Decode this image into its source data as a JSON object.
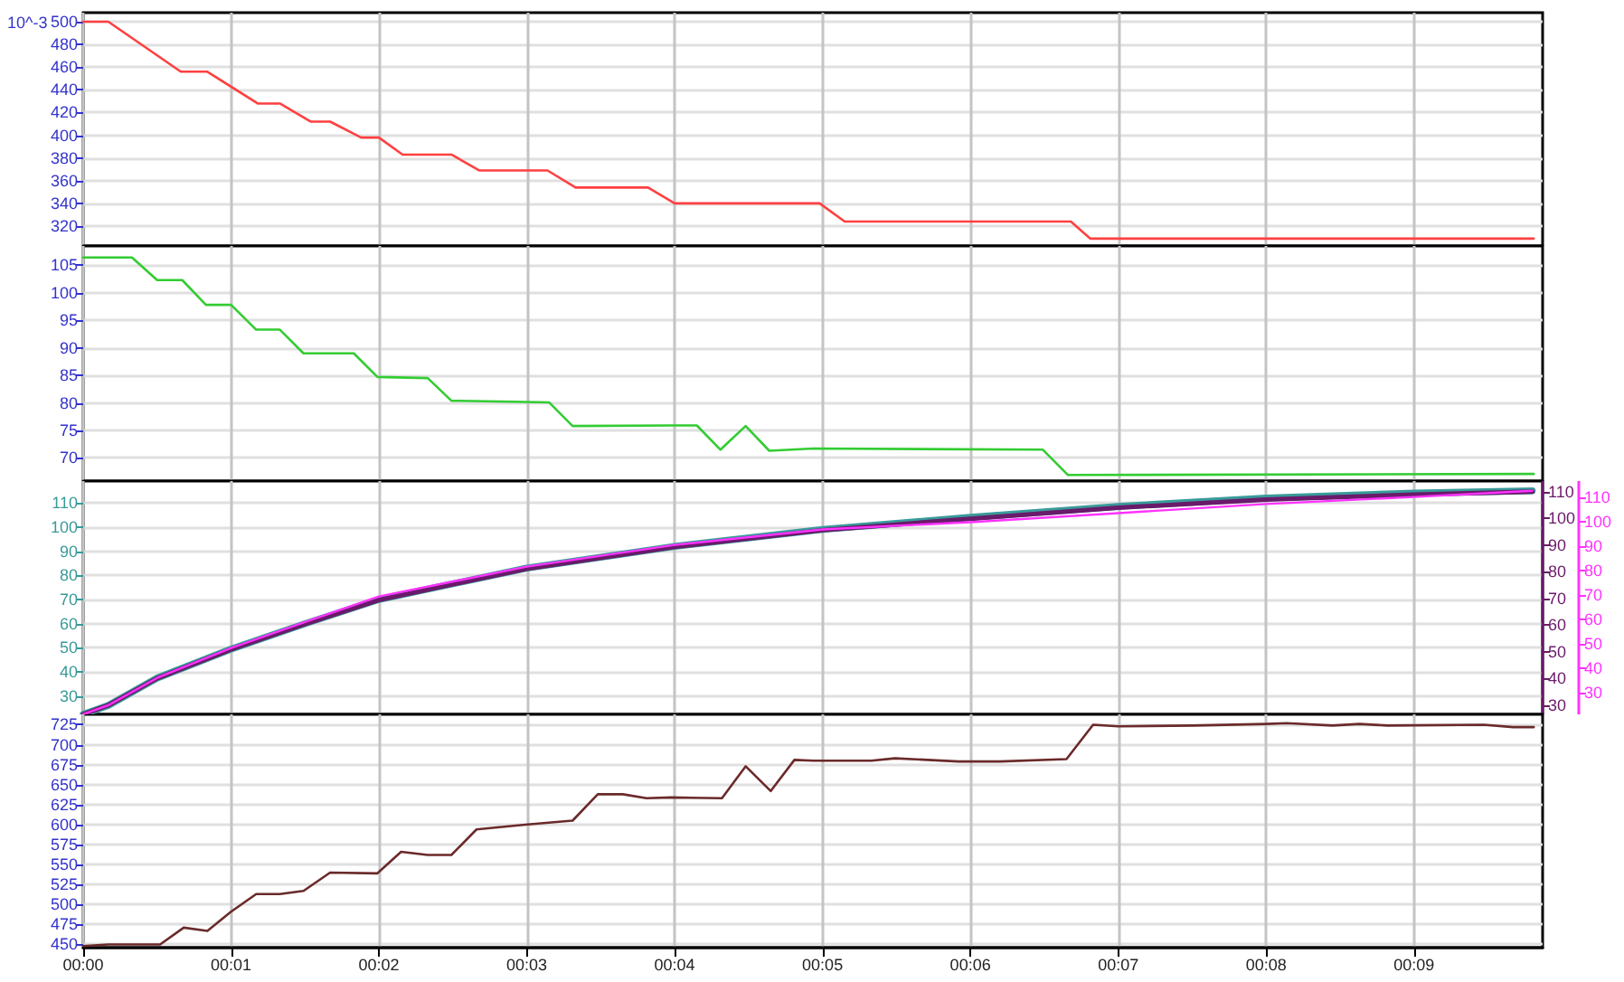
{
  "chart_data": [
    {
      "type": "line",
      "ylabel": "10^-3",
      "x": [
        0,
        0.17,
        0.66,
        0.84,
        1.18,
        1.33,
        1.54,
        1.67,
        1.88,
        2.0,
        2.16,
        2.49,
        2.68,
        3.14,
        3.33,
        3.82,
        4.0,
        4.98,
        5.15,
        6.68,
        6.81,
        9.81
      ],
      "series": [
        {
          "color": "#ff4040",
          "values": [
            500,
            500,
            456,
            456,
            428,
            428,
            412,
            412,
            398,
            398,
            383,
            383,
            369,
            369,
            354,
            354,
            340,
            340,
            324,
            324,
            309,
            309
          ]
        }
      ],
      "xlim": [
        0,
        9.87
      ],
      "xticks": [
        {
          "value": 0,
          "label": null
        },
        {
          "value": 1,
          "label": null
        },
        {
          "value": 2,
          "label": null
        },
        {
          "value": 3,
          "label": null
        },
        {
          "value": 4,
          "label": null
        },
        {
          "value": 5,
          "label": null
        },
        {
          "value": 6,
          "label": null
        },
        {
          "value": 7,
          "label": null
        },
        {
          "value": 8,
          "label": null
        },
        {
          "value": 9,
          "label": null
        }
      ],
      "ylim": [
        302.5,
        508
      ],
      "yticks": [
        320,
        340,
        360,
        380,
        400,
        420,
        440,
        460,
        480,
        500
      ],
      "grid": true,
      "tick_labels": "y",
      "marker": "none",
      "line_style": "solid"
    },
    {
      "type": "line",
      "x": [
        0,
        0.33,
        0.5,
        0.67,
        0.83,
        1.0,
        1.17,
        1.33,
        1.49,
        1.83,
        1.99,
        2.33,
        2.49,
        3.15,
        3.31,
        3.98,
        4.15,
        4.31,
        4.48,
        4.64,
        4.94,
        6.49,
        6.66,
        9.81
      ],
      "series": [
        {
          "color": "#33cc33",
          "values": [
            106.4,
            106.4,
            102.3,
            102.3,
            97.8,
            97.8,
            93.3,
            93.3,
            89.0,
            89.0,
            84.7,
            84.5,
            80.4,
            80.1,
            75.8,
            75.9,
            75.9,
            71.5,
            75.8,
            71.3,
            71.7,
            71.5,
            66.9,
            67.1
          ]
        }
      ],
      "xlim": [
        0,
        9.87
      ],
      "xticks": [
        {
          "value": 0,
          "label": null
        },
        {
          "value": 1,
          "label": null
        },
        {
          "value": 2,
          "label": null
        },
        {
          "value": 3,
          "label": null
        },
        {
          "value": 4,
          "label": null
        },
        {
          "value": 5,
          "label": null
        },
        {
          "value": 6,
          "label": null
        },
        {
          "value": 7,
          "label": null
        },
        {
          "value": 8,
          "label": null
        },
        {
          "value": 9,
          "label": null
        }
      ],
      "ylim": [
        65.8,
        108.5
      ],
      "yticks": [
        70,
        75,
        80,
        85,
        90,
        95,
        100,
        105
      ],
      "grid": true,
      "tick_labels": "y",
      "marker": "none",
      "line_style": "solid"
    },
    {
      "type": "line",
      "x": [
        0,
        0.17,
        0.5,
        1,
        1.5,
        2,
        3,
        4,
        5,
        6,
        7,
        8,
        9,
        9.8
      ],
      "series": [
        {
          "color": "#3a9a9a",
          "values": [
            22.5,
            26.2,
            37.5,
            49.5,
            60,
            70,
            83,
            92,
            99,
            104,
            108.5,
            112,
            114,
            115
          ]
        },
        {
          "color": "#6a1a6a",
          "axis": "y2",
          "values": [
            26.6,
            30,
            40.1,
            50.9,
            60.4,
            69.4,
            81.1,
            89.3,
            95.5,
            99.8,
            103.9,
            107,
            108.8,
            109.9
          ]
        },
        {
          "color": "#ff33ff",
          "axis": "y3",
          "values": [
            21.3,
            25,
            36.2,
            48.4,
            59.1,
            69.5,
            81.7,
            90.6,
            96.9,
            99.9,
            103.6,
            107.3,
            110.2,
            112.7
          ]
        }
      ],
      "xlim": [
        0,
        9.87
      ],
      "xticks": [
        {
          "value": 0,
          "label": null
        },
        {
          "value": 1,
          "label": null
        },
        {
          "value": 2,
          "label": null
        },
        {
          "value": 3,
          "label": null
        },
        {
          "value": 4,
          "label": null
        },
        {
          "value": 5,
          "label": null
        },
        {
          "value": 6,
          "label": null
        },
        {
          "value": 7,
          "label": null
        },
        {
          "value": 8,
          "label": null
        },
        {
          "value": 9,
          "label": null
        }
      ],
      "ylim": [
        22.5,
        119
      ],
      "yticks": [
        30,
        40,
        50,
        60,
        70,
        80,
        90,
        100,
        110
      ],
      "y2lim": [
        26.6,
        113.9
      ],
      "y2ticks": [
        30,
        40,
        50,
        60,
        70,
        80,
        90,
        100,
        110
      ],
      "y3lim": [
        21.3,
        116.7
      ],
      "y3ticks": [
        30,
        40,
        50,
        60,
        70,
        80,
        90,
        100,
        110
      ],
      "grid": true,
      "tick_labels": "y",
      "marker": "none",
      "line_style": "solid"
    },
    {
      "type": "line",
      "x": [
        0,
        0.17,
        0.52,
        0.68,
        0.84,
        1.0,
        1.17,
        1.33,
        1.49,
        1.67,
        1.99,
        2.15,
        2.33,
        2.49,
        2.66,
        2.99,
        3.31,
        3.48,
        3.65,
        3.81,
        3.98,
        4.32,
        4.48,
        4.65,
        4.81,
        4.94,
        5.33,
        5.49,
        5.92,
        6.2,
        6.65,
        6.83,
        7.0,
        7.51,
        8.0,
        8.14,
        8.45,
        8.63,
        8.82,
        9.47,
        9.67,
        9.81
      ],
      "series": [
        {
          "color": "#6b2a2a",
          "values": [
            448,
            450,
            450,
            471,
            467,
            491,
            513,
            513,
            517,
            540,
            539,
            566,
            562,
            562,
            594,
            600,
            605,
            638,
            638,
            633,
            634,
            633,
            673,
            642,
            681,
            680,
            680,
            683,
            679,
            679,
            682,
            725,
            723,
            724,
            726,
            727,
            724,
            726,
            724,
            725,
            722,
            722
          ]
        }
      ],
      "xlim": [
        0,
        9.87
      ],
      "xticks": [
        {
          "value": 0,
          "label": "00:00"
        },
        {
          "value": 1,
          "label": "00:01"
        },
        {
          "value": 2,
          "label": "00:02"
        },
        {
          "value": 3,
          "label": "00:03"
        },
        {
          "value": 4,
          "label": "00:04"
        },
        {
          "value": 5,
          "label": "00:05"
        },
        {
          "value": 6,
          "label": "00:06"
        },
        {
          "value": 7,
          "label": "00:07"
        },
        {
          "value": 8,
          "label": "00:08"
        },
        {
          "value": 9,
          "label": "00:09"
        }
      ],
      "ylim": [
        446,
        738
      ],
      "yticks": [
        450,
        475,
        500,
        525,
        550,
        575,
        600,
        625,
        650,
        675,
        700,
        725
      ],
      "grid": true,
      "marker": "none",
      "line_style": "solid"
    }
  ]
}
